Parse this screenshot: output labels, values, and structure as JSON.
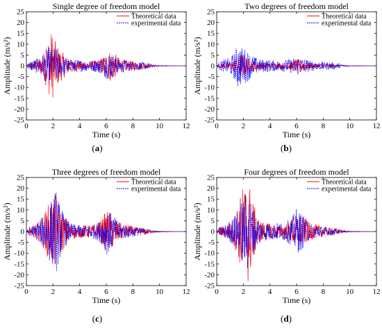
{
  "chart_data": [
    {
      "type": "line",
      "panel": "a",
      "caption": "(a)",
      "title": "Single degree of freedom model",
      "xlabel": "Time (s)",
      "ylabel": "Amplitude (m/s²)",
      "xlim": [
        0,
        12
      ],
      "ylim": [
        -25,
        25
      ],
      "xticks": [
        0,
        2,
        4,
        6,
        8,
        10,
        12
      ],
      "yticks": [
        25,
        20,
        15,
        10,
        5,
        0,
        -5,
        -10,
        -15,
        -20,
        -25
      ],
      "legend_position": "top-right",
      "series": [
        {
          "name": "Theoretical data",
          "color": "#ff0000",
          "style": "solid",
          "envelope": [
            [
              0.2,
              1.5
            ],
            [
              0.6,
              2.5
            ],
            [
              1.0,
              3.5
            ],
            [
              1.3,
              6
            ],
            [
              1.6,
              12
            ],
            [
              1.9,
              16.5
            ],
            [
              2.2,
              11
            ],
            [
              2.5,
              8
            ],
            [
              2.9,
              5
            ],
            [
              3.3,
              3
            ],
            [
              3.8,
              2.5
            ],
            [
              4.3,
              2
            ],
            [
              4.8,
              2.2
            ],
            [
              5.3,
              2.5
            ],
            [
              5.7,
              4
            ],
            [
              6.0,
              6
            ],
            [
              6.3,
              7.5
            ],
            [
              6.6,
              6
            ],
            [
              7.0,
              3.5
            ],
            [
              7.6,
              2.5
            ],
            [
              8.3,
              2
            ],
            [
              9.0,
              1.5
            ],
            [
              9.5,
              0.5
            ],
            [
              10.0,
              0.2
            ],
            [
              12,
              0
            ]
          ]
        },
        {
          "name": "experimental data",
          "color": "#0000ff",
          "style": "dashed",
          "envelope": [
            [
              0.2,
              2
            ],
            [
              0.6,
              3
            ],
            [
              1.0,
              4
            ],
            [
              1.3,
              6
            ],
            [
              1.6,
              9.5
            ],
            [
              1.9,
              8
            ],
            [
              2.2,
              9
            ],
            [
              2.5,
              6
            ],
            [
              2.9,
              4
            ],
            [
              3.3,
              3
            ],
            [
              3.8,
              3
            ],
            [
              4.3,
              2.5
            ],
            [
              4.8,
              2.5
            ],
            [
              5.3,
              3
            ],
            [
              5.7,
              4
            ],
            [
              6.0,
              6
            ],
            [
              6.3,
              6.5
            ],
            [
              6.6,
              5
            ],
            [
              7.0,
              3
            ],
            [
              7.6,
              2.5
            ],
            [
              8.3,
              2
            ],
            [
              9.0,
              1.5
            ],
            [
              9.5,
              0.5
            ],
            [
              10.0,
              0.2
            ],
            [
              12,
              0
            ]
          ]
        }
      ]
    },
    {
      "type": "line",
      "panel": "b",
      "caption": "(b)",
      "title": "Two degrees of freedom model",
      "xlabel": "Time (s)",
      "ylabel": "Amplitude (m/s²)",
      "xlim": [
        0,
        12
      ],
      "ylim": [
        -25,
        25
      ],
      "xticks": [
        0,
        2,
        4,
        6,
        8,
        10,
        12
      ],
      "yticks": [
        25,
        20,
        15,
        10,
        5,
        0,
        -5,
        -10,
        -15,
        -20,
        -25
      ],
      "legend_position": "top-right",
      "series": [
        {
          "name": "Theoretical data",
          "color": "#ff0000",
          "style": "solid",
          "envelope": [
            [
              0.2,
              1
            ],
            [
              0.6,
              1.5
            ],
            [
              1.0,
              2
            ],
            [
              1.3,
              3
            ],
            [
              1.6,
              5
            ],
            [
              1.9,
              6
            ],
            [
              2.2,
              4.5
            ],
            [
              2.5,
              3
            ],
            [
              2.9,
              2.5
            ],
            [
              3.3,
              2
            ],
            [
              3.8,
              1.5
            ],
            [
              4.3,
              1.5
            ],
            [
              4.8,
              1.5
            ],
            [
              5.3,
              1.5
            ],
            [
              5.7,
              2.5
            ],
            [
              6.0,
              3
            ],
            [
              6.3,
              3
            ],
            [
              6.6,
              2.5
            ],
            [
              7.0,
              1.5
            ],
            [
              7.6,
              1.2
            ],
            [
              8.3,
              1
            ],
            [
              9.0,
              0.8
            ],
            [
              9.5,
              0.3
            ],
            [
              10.0,
              0.1
            ],
            [
              12,
              0
            ]
          ]
        },
        {
          "name": "experimental data",
          "color": "#0000ff",
          "style": "dashed",
          "envelope": [
            [
              0.2,
              2
            ],
            [
              0.6,
              3
            ],
            [
              1.0,
              4
            ],
            [
              1.3,
              6
            ],
            [
              1.6,
              11
            ],
            [
              1.9,
              8.5
            ],
            [
              2.2,
              8
            ],
            [
              2.5,
              6
            ],
            [
              2.9,
              4
            ],
            [
              3.3,
              3
            ],
            [
              3.8,
              3
            ],
            [
              4.3,
              2.5
            ],
            [
              4.8,
              2.5
            ],
            [
              5.3,
              3
            ],
            [
              5.7,
              3.5
            ],
            [
              6.0,
              4.5
            ],
            [
              6.3,
              4
            ],
            [
              6.6,
              3.5
            ],
            [
              7.0,
              2.5
            ],
            [
              7.6,
              2
            ],
            [
              8.3,
              1.8
            ],
            [
              9.0,
              1.5
            ],
            [
              9.5,
              0.5
            ],
            [
              10.0,
              0.2
            ],
            [
              12,
              0
            ]
          ]
        }
      ]
    },
    {
      "type": "line",
      "panel": "c",
      "caption": "(c)",
      "title": "Three degrees of freedom model",
      "xlabel": "Time (s)",
      "ylabel": "Amplitude (m/s²)",
      "xlim": [
        0,
        12
      ],
      "ylim": [
        -25,
        25
      ],
      "xticks": [
        0,
        2,
        4,
        6,
        8,
        10,
        12
      ],
      "yticks": [
        25,
        20,
        15,
        10,
        5,
        0,
        -5,
        -10,
        -15,
        -20,
        -25
      ],
      "legend_position": "top-right",
      "series": [
        {
          "name": "Theoretical data",
          "color": "#ff0000",
          "style": "solid",
          "envelope": [
            [
              0.2,
              2
            ],
            [
              0.6,
              3
            ],
            [
              1.0,
              5
            ],
            [
              1.3,
              8
            ],
            [
              1.6,
              12
            ],
            [
              1.9,
              16
            ],
            [
              2.2,
              18
            ],
            [
              2.5,
              12
            ],
            [
              2.9,
              7
            ],
            [
              3.3,
              4
            ],
            [
              3.8,
              3
            ],
            [
              4.3,
              3
            ],
            [
              4.8,
              3
            ],
            [
              5.3,
              3.5
            ],
            [
              5.7,
              6
            ],
            [
              6.0,
              10
            ],
            [
              6.3,
              9
            ],
            [
              6.6,
              7
            ],
            [
              7.0,
              4
            ],
            [
              7.6,
              3
            ],
            [
              8.3,
              2
            ],
            [
              9.0,
              1.5
            ],
            [
              9.5,
              0.5
            ],
            [
              10.0,
              0.2
            ],
            [
              12,
              0
            ]
          ]
        },
        {
          "name": "experimental data",
          "color": "#0000ff",
          "style": "dashed",
          "envelope": [
            [
              0.2,
              2
            ],
            [
              0.6,
              3
            ],
            [
              1.0,
              5
            ],
            [
              1.3,
              8
            ],
            [
              1.6,
              13
            ],
            [
              1.9,
              15
            ],
            [
              2.2,
              20
            ],
            [
              2.5,
              13
            ],
            [
              2.9,
              7
            ],
            [
              3.3,
              4
            ],
            [
              3.8,
              3
            ],
            [
              4.3,
              3
            ],
            [
              4.8,
              3
            ],
            [
              5.3,
              4
            ],
            [
              5.7,
              6
            ],
            [
              6.0,
              11
            ],
            [
              6.3,
              9
            ],
            [
              6.6,
              7
            ],
            [
              7.0,
              4
            ],
            [
              7.6,
              3
            ],
            [
              8.3,
              2
            ],
            [
              9.0,
              1.5
            ],
            [
              9.5,
              0.5
            ],
            [
              10.0,
              0.2
            ],
            [
              12,
              0
            ]
          ]
        }
      ]
    },
    {
      "type": "line",
      "panel": "d",
      "caption": "(d)",
      "title": "Four degrees of freedom model",
      "xlabel": "Time (s)",
      "ylabel": "Amplitude (m/s²)",
      "xlim": [
        0,
        12
      ],
      "ylim": [
        -25,
        25
      ],
      "xticks": [
        0,
        2,
        4,
        6,
        8,
        10,
        12
      ],
      "yticks": [
        25,
        20,
        15,
        10,
        5,
        0,
        -5,
        -10,
        -15,
        -20,
        -25
      ],
      "legend_position": "top-right",
      "series": [
        {
          "name": "Theoretical data",
          "color": "#ff0000",
          "style": "solid",
          "envelope": [
            [
              0.2,
              2
            ],
            [
              0.6,
              3
            ],
            [
              1.0,
              4
            ],
            [
              1.3,
              7
            ],
            [
              1.6,
              12
            ],
            [
              1.9,
              20
            ],
            [
              2.1,
              23
            ],
            [
              2.4,
              25
            ],
            [
              2.7,
              15
            ],
            [
              3.0,
              8
            ],
            [
              3.3,
              5
            ],
            [
              3.8,
              4
            ],
            [
              4.3,
              3
            ],
            [
              4.8,
              3
            ],
            [
              5.3,
              4
            ],
            [
              5.7,
              6
            ],
            [
              6.0,
              8
            ],
            [
              6.3,
              8
            ],
            [
              6.6,
              6
            ],
            [
              7.0,
              4
            ],
            [
              7.6,
              3
            ],
            [
              8.3,
              2
            ],
            [
              9.0,
              1.5
            ],
            [
              9.5,
              0.5
            ],
            [
              10.0,
              0.2
            ],
            [
              12,
              0
            ]
          ]
        },
        {
          "name": "experimental data",
          "color": "#0000ff",
          "style": "dashed",
          "envelope": [
            [
              0.2,
              2
            ],
            [
              0.6,
              3
            ],
            [
              1.0,
              5
            ],
            [
              1.3,
              7
            ],
            [
              1.6,
              11
            ],
            [
              1.9,
              15
            ],
            [
              2.1,
              18
            ],
            [
              2.4,
              19
            ],
            [
              2.7,
              12
            ],
            [
              3.0,
              7
            ],
            [
              3.3,
              5
            ],
            [
              3.8,
              4
            ],
            [
              4.3,
              4
            ],
            [
              4.8,
              4
            ],
            [
              5.3,
              5
            ],
            [
              5.7,
              7
            ],
            [
              6.0,
              11
            ],
            [
              6.3,
              9
            ],
            [
              6.6,
              7
            ],
            [
              7.0,
              4
            ],
            [
              7.6,
              3
            ],
            [
              8.3,
              2
            ],
            [
              9.0,
              1.5
            ],
            [
              9.5,
              0.5
            ],
            [
              10.0,
              0.2
            ],
            [
              12,
              0
            ]
          ]
        }
      ]
    }
  ]
}
